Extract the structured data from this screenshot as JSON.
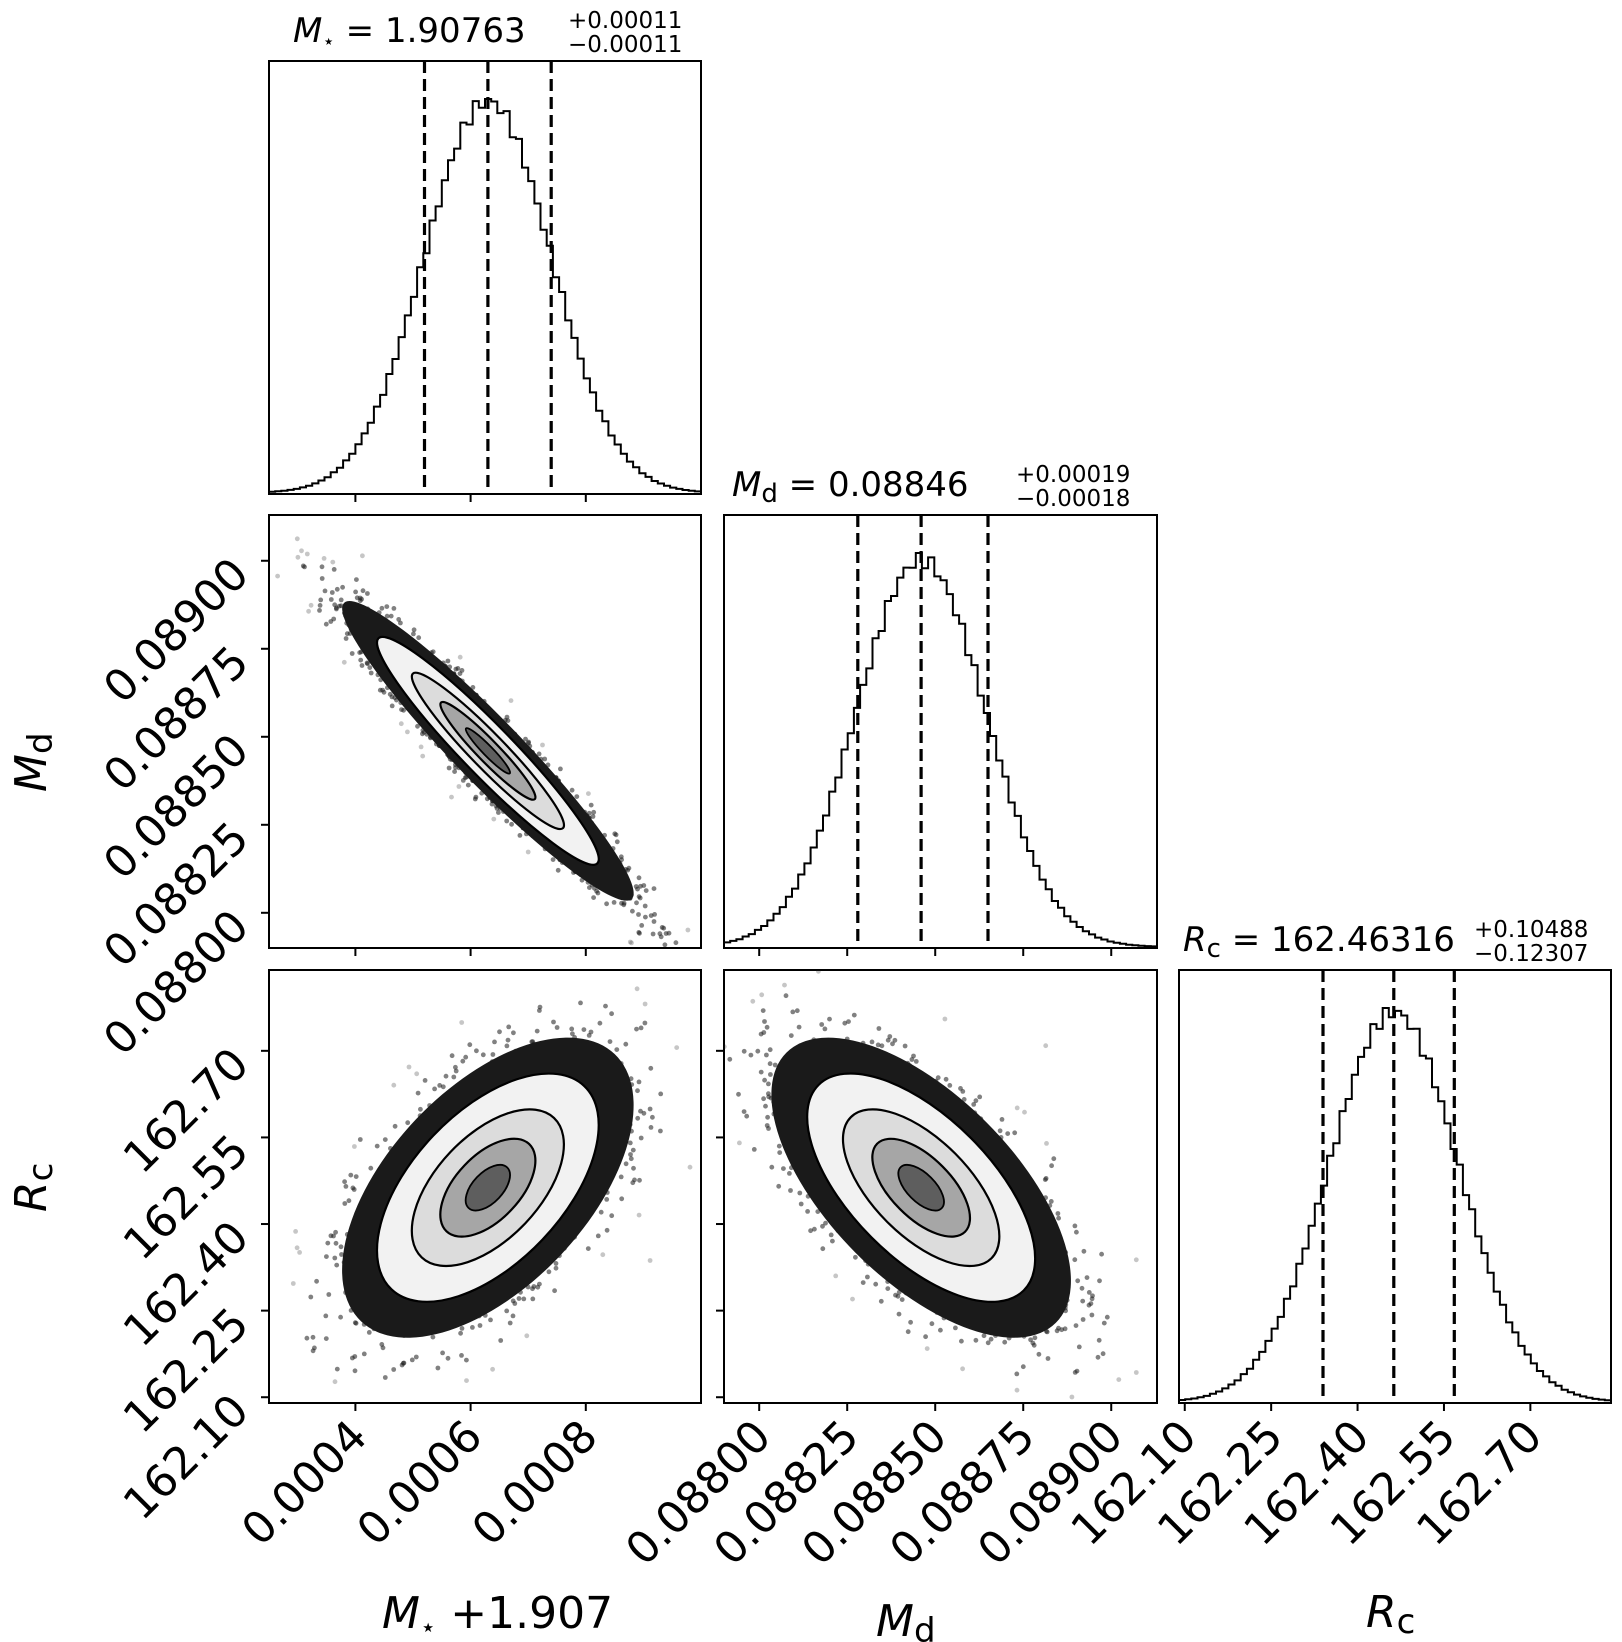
{
  "chart_data": {
    "type": "corner",
    "parameters": [
      {
        "key": "mstar",
        "label_base": "M",
        "label_sub": "⋆",
        "axis_suffix": " +1.907",
        "title_prefix": "M⋆ = ",
        "median": "1.90763",
        "err_plus": "+0.00011",
        "err_minus": "−0.00011",
        "quantiles": [
          0.00052,
          0.00063,
          0.00074
        ],
        "range": [
          0.00025,
          0.001
        ],
        "ticks": [
          0.0004,
          0.0006,
          0.0008
        ],
        "tick_labels": [
          "0.0004",
          "0.0006",
          "0.0008"
        ]
      },
      {
        "key": "md",
        "label_base": "M",
        "label_sub": "d",
        "title_prefix": "Md    = ",
        "median": "0.08846",
        "err_plus": "+0.00019",
        "err_minus": "−0.00018",
        "quantiles": [
          0.08828,
          0.08846,
          0.08865
        ],
        "range": [
          0.0879,
          0.08913
        ],
        "ticks": [
          0.088,
          0.08825,
          0.0885,
          0.08875,
          0.089
        ],
        "tick_labels": [
          "0.08800",
          "0.08825",
          "0.08850",
          "0.08875",
          "0.08900"
        ]
      },
      {
        "key": "rc",
        "label_base": "R",
        "label_sub": "c",
        "title_prefix": "Rc = ",
        "median": "162.46316",
        "err_plus": "+0.10488",
        "err_minus": "−0.12307",
        "quantiles": [
          162.34,
          162.463,
          162.568
        ],
        "range": [
          162.09,
          162.84
        ],
        "ticks": [
          162.1,
          162.25,
          162.4,
          162.55,
          162.7
        ],
        "tick_labels": [
          "162.10",
          "162.25",
          "162.40",
          "162.55",
          "162.70"
        ]
      }
    ],
    "marginals": {
      "mstar": {
        "mean": 0.00063,
        "sd": 0.00011
      },
      "md": {
        "mean": 0.08846,
        "sd": 0.000185
      },
      "rc": {
        "mean": 0.463,
        "sd": 0.113,
        "offset": 162.0
      }
    },
    "correlations": {
      "md_vs_mstar": -0.95,
      "rc_vs_mstar": 0.55,
      "rc_vs_md": -0.62
    },
    "contour_levels": 3,
    "colors": {
      "line": "#000000",
      "fill_dark": "#1a1a1a",
      "fill_mid": "#5e5e5e",
      "fill_light": "#a6a6a6",
      "fill_inner": "#dcdcdc"
    }
  }
}
